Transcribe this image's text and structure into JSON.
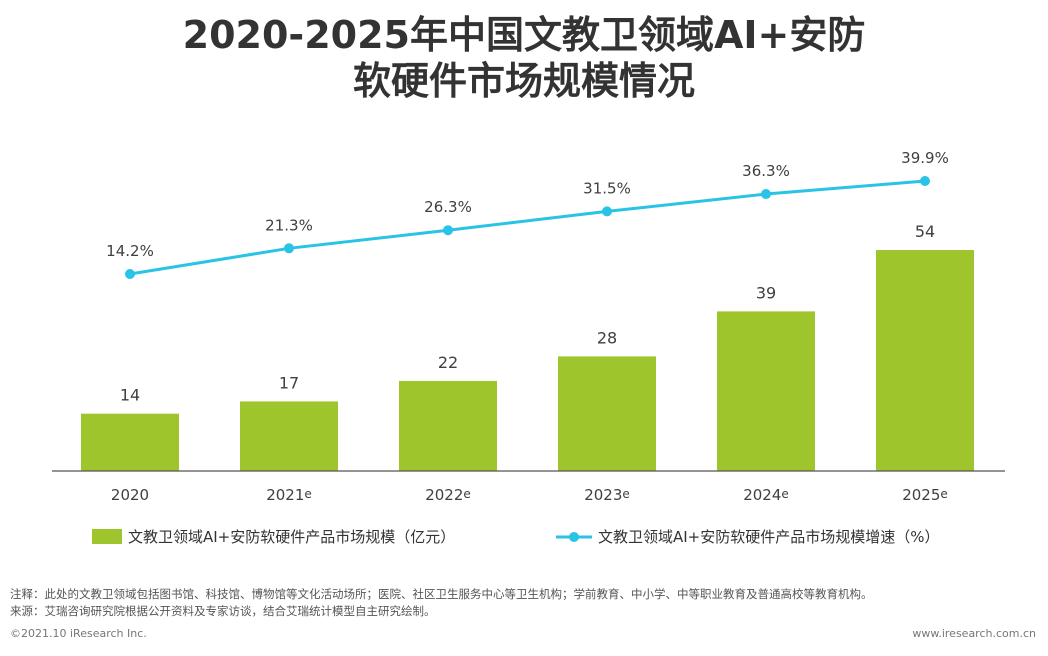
{
  "title": {
    "line1": "2020-2025年中国文教卫领域AI+安防",
    "line2": "软硬件市场规模情况"
  },
  "chart_data": {
    "type": "bar+line",
    "categories": [
      "2020",
      "2021e",
      "2022e",
      "2023e",
      "2024e",
      "2025e"
    ],
    "series": [
      {
        "name": "文教卫领域AI+安防软硬件产品市场规模（亿元）",
        "type": "bar",
        "values": [
          14,
          17,
          22,
          28,
          39,
          54
        ],
        "labels": [
          "14",
          "17",
          "22",
          "28",
          "39",
          "54"
        ],
        "color": "#9ec52c"
      },
      {
        "name": "文教卫领域AI+安防软硬件产品市场规模增速（%）",
        "type": "line",
        "values": [
          14.2,
          21.3,
          26.3,
          31.5,
          36.3,
          39.9
        ],
        "labels": [
          "14.2%",
          "21.3%",
          "26.3%",
          "31.5%",
          "36.3%",
          "39.9%"
        ],
        "color": "#29c3e6"
      }
    ],
    "legend_position": "bottom",
    "grid": false
  },
  "notes": {
    "note": "注释：此处的文教卫领域包括图书馆、科技馆、博物馆等文化活动场所；医院、社区卫生服务中心等卫生机构；学前教育、中小学、中等职业教育及普通高校等教育机构。",
    "source": "来源：艾瑞咨询研究院根据公开资料及专家访谈，结合艾瑞统计模型自主研究绘制。"
  },
  "footer": {
    "copyright": "©2021.10 iResearch Inc.",
    "website": "www.iresearch.com.cn"
  }
}
